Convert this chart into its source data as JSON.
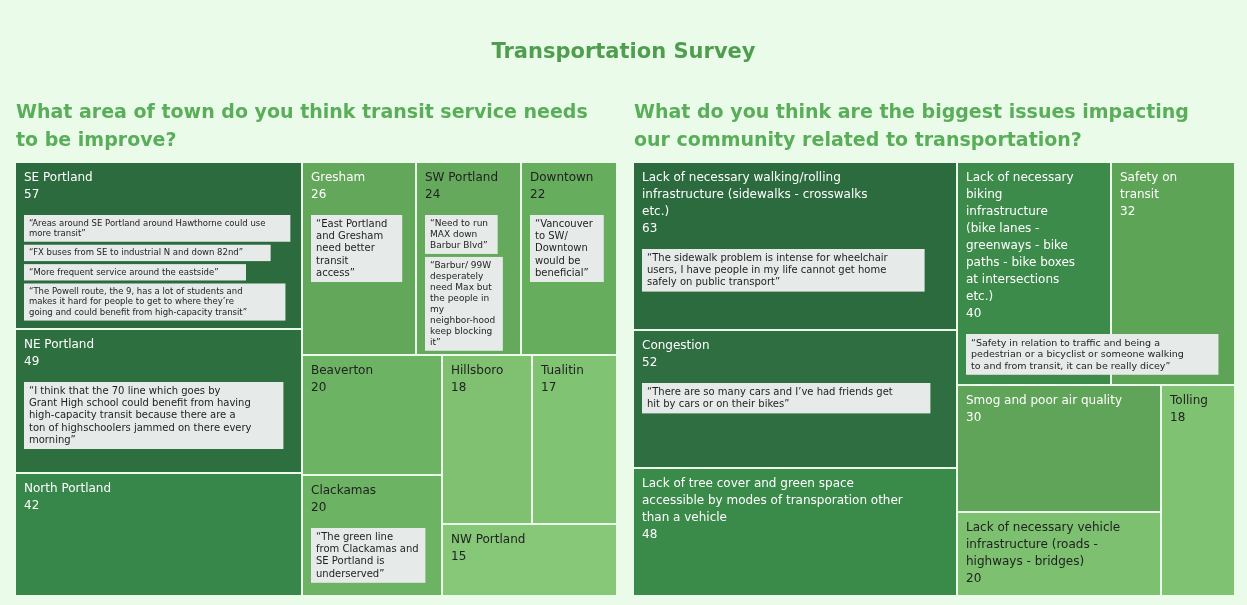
{
  "chart_data": [
    {
      "type": "other",
      "title": "Transportation Survey",
      "subtitle": "What area of town do you think transit service needs to be improve?",
      "categories": [
        "SE Portland",
        "NE Portland",
        "North Portland",
        "Gresham",
        "SW Portland",
        "Downtown",
        "Beaverton",
        "Clackamas",
        "Hillsboro",
        "Tualitin",
        "NW Portland"
      ],
      "values": [
        57,
        49,
        42,
        26,
        24,
        22,
        20,
        20,
        18,
        17,
        15
      ],
      "colors": [
        "#2b6b3d",
        "#2e6f3f",
        "#37864a",
        "#63a85a",
        "#65aa5c",
        "#67ad5e",
        "#6cb363",
        "#6cb363",
        "#7fc071",
        "#80c373",
        "#86c878"
      ],
      "data_labels": true,
      "annotations": [
        {
          "text": "“Areas around SE Portland around Hawthorne could use more transit”",
          "x": "SE Portland"
        },
        {
          "text": "“FX buses from SE to industrial N and down 82nd”",
          "x": "SE Portland"
        },
        {
          "text": "“More frequent service around the eastside”",
          "x": "SE Portland"
        },
        {
          "text": "“The Powell route, the 9, has a lot of students and makes it hard for people to get to where they’re going and could benefit from high-capacity transit”",
          "x": "SE Portland"
        },
        {
          "text": "“I think that the 70 line which goes by Grant High school could benefit from having high-capacity transit because there are a ton of highschoolers jammed on there every morning”",
          "x": "NE Portland"
        },
        {
          "text": "“East Portland and Gresham need better transit access”",
          "x": "Gresham"
        },
        {
          "text": "“Need to run MAX down Barbur Blvd”",
          "x": "SW Portland"
        },
        {
          "text": "“Barbur/ 99W desperately need Max but the people in my neighbor-hood keep blocking it”",
          "x": "SW Portland"
        },
        {
          "text": "“Vancouver to SW/ Downtown would be beneficial”",
          "x": "Downtown"
        },
        {
          "text": "“The green line from Clackamas and SE Portland is underserved”",
          "x": "Clackamas"
        }
      ]
    },
    {
      "type": "other",
      "subtitle": "What do you think are the biggest issues impacting our community related to transportation?",
      "categories": [
        "Lack of necessary walking/rolling infrastructure (sidewalks - crosswalks etc.)",
        "Congestion",
        "Lack of tree cover and green space accessible by modes of transporation other than a vehicle",
        "Lack of necessary biking infrastructure (bike lanes - greenways - bike paths - bike boxes at intersections etc.)",
        "Safety on transit",
        "Smog and poor air quality",
        "Lack of necessary vehicle infrastructure (roads - highways - bridges)",
        "Tolling"
      ],
      "values": [
        63,
        52,
        48,
        40,
        32,
        30,
        20,
        18
      ],
      "colors": [
        "#2c6b3e",
        "#2e6e40",
        "#3a8a4a",
        "#3d8b4b",
        "#5ea457",
        "#5fa458",
        "#7cc070",
        "#7fc272"
      ],
      "data_labels": true,
      "annotations": [
        {
          "text": "“The sidewalk problem is intense for wheelchair users, I have people in my life cannot get home safely on public transport”",
          "x": "Lack of necessary walking/rolling infrastructure (sidewalks - crosswalks etc.)"
        },
        {
          "text": "“There are so many cars and I’ve had friends get hit by cars or on their bikes”",
          "x": "Congestion"
        },
        {
          "text": "“Safety in relation to traffic and being a pedestrian or a bicyclist or someone walking to and from transit, it can be really dicey”",
          "x": "Lack of necessary biking infrastructure (bike lanes - greenways - bike paths - bike boxes at intersections etc.)"
        }
      ]
    }
  ]
}
